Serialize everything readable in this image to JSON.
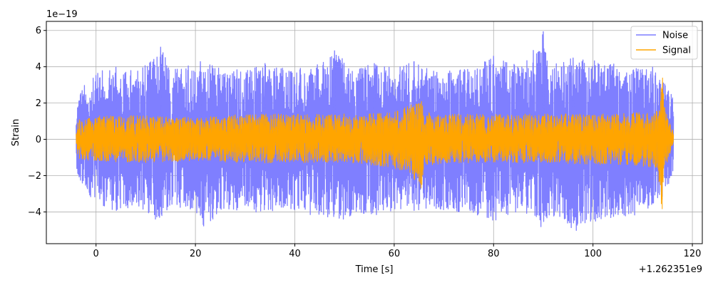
{
  "chart_data": {
    "type": "line",
    "xlabel": "Time [s]",
    "ylabel": "Strain",
    "x_offset_label": "+1.262351e9",
    "y_scale_label": "1e−19",
    "xlim": [
      -10,
      122
    ],
    "ylim": [
      -5.75,
      6.5
    ],
    "x_ticks": [
      0,
      20,
      40,
      60,
      80,
      100,
      120
    ],
    "x_tick_labels": [
      "0",
      "20",
      "40",
      "60",
      "80",
      "100",
      "120"
    ],
    "y_ticks": [
      -4,
      -2,
      0,
      2,
      4,
      6
    ],
    "y_tick_labels": [
      "−4",
      "−2",
      "0",
      "2",
      "4",
      "6"
    ],
    "grid": true,
    "legend_position": "top-right",
    "x_range": [
      -4,
      116.2
    ],
    "series": [
      {
        "name": "Noise",
        "color": "#7f7fff",
        "envelope": {
          "x": [
            -4,
            -3.5,
            1,
            4,
            6,
            10,
            12,
            13,
            15,
            20,
            21,
            26,
            30,
            34,
            38,
            44,
            48,
            52,
            56,
            60,
            64,
            66,
            70,
            76,
            80,
            84,
            86,
            90,
            91,
            94,
            96,
            100,
            104,
            108,
            112,
            114,
            116.2
          ],
          "upper": [
            1.4,
            2.8,
            3.8,
            4.0,
            3.8,
            4.2,
            4.5,
            5.1,
            4.0,
            4.1,
            4.3,
            3.9,
            3.8,
            4.2,
            3.9,
            4.0,
            4.9,
            4.0,
            4.2,
            3.9,
            4.3,
            4.0,
            3.9,
            4.0,
            4.6,
            4.2,
            4.0,
            5.95,
            4.0,
            4.3,
            4.5,
            4.4,
            4.2,
            3.9,
            4.0,
            3.3,
            2.4
          ],
          "lower": [
            -1.2,
            -2.7,
            -3.6,
            -4.0,
            -3.8,
            -3.9,
            -4.5,
            -4.8,
            -3.7,
            -3.9,
            -4.9,
            -4.0,
            -3.9,
            -4.1,
            -3.9,
            -4.2,
            -4.7,
            -4.1,
            -4.2,
            -3.9,
            -4.0,
            -3.8,
            -3.9,
            -4.1,
            -4.8,
            -4.0,
            -4.1,
            -5.15,
            -4.2,
            -4.3,
            -5.1,
            -4.6,
            -4.3,
            -4.2,
            -4.0,
            -3.2,
            -2.0
          ]
        }
      },
      {
        "name": "Signal",
        "color": "#ffa500",
        "envelope": {
          "x": [
            -4,
            -3.5,
            0,
            10,
            20,
            30,
            40,
            50,
            55,
            60,
            63,
            65.5,
            66,
            70,
            80,
            90,
            100,
            105,
            110,
            113,
            114,
            114.3,
            115,
            116.2
          ],
          "upper": [
            0.5,
            1.1,
            1.3,
            1.3,
            1.2,
            1.4,
            1.4,
            1.4,
            1.4,
            1.6,
            1.9,
            2.1,
            1.5,
            1.4,
            1.4,
            1.4,
            1.4,
            1.4,
            1.5,
            1.6,
            3.4,
            2.0,
            1.2,
            0.4
          ],
          "lower": [
            -0.6,
            -1.1,
            -1.2,
            -1.3,
            -1.2,
            -1.3,
            -1.3,
            -1.3,
            -1.4,
            -1.6,
            -1.8,
            -2.8,
            -1.5,
            -1.3,
            -1.3,
            -1.3,
            -1.4,
            -1.4,
            -1.5,
            -1.6,
            -4.3,
            -2.0,
            -1.2,
            -0.4
          ]
        }
      }
    ]
  }
}
